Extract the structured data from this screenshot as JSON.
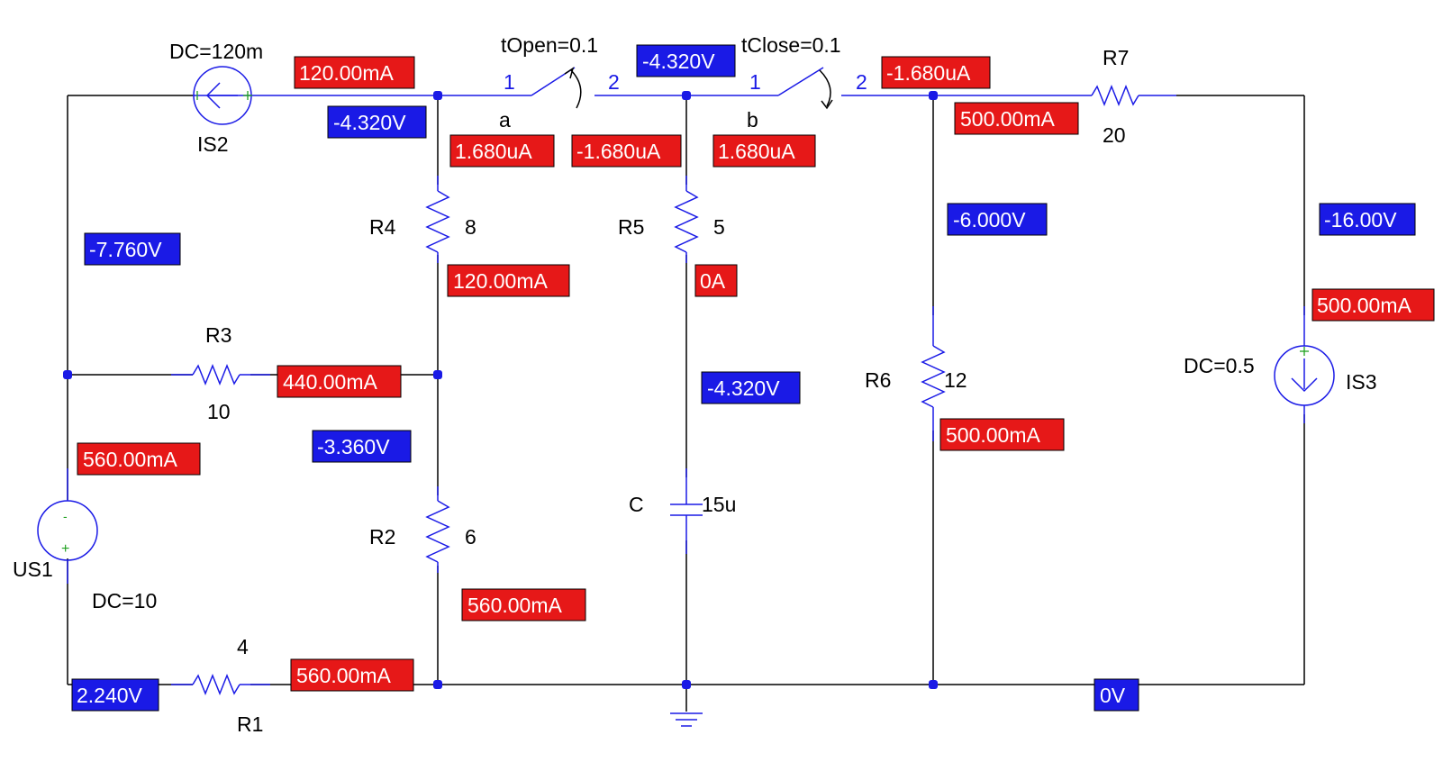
{
  "components": {
    "IS2": {
      "name": "IS2",
      "value": "DC=120m"
    },
    "IS3": {
      "name": "IS3",
      "value": "DC=0.5"
    },
    "US1": {
      "name": "US1",
      "value": "DC=10"
    },
    "R1": {
      "name": "R1",
      "value": "4"
    },
    "R2": {
      "name": "R2",
      "value": "6"
    },
    "R3": {
      "name": "R3",
      "value": "10"
    },
    "R4": {
      "name": "R4",
      "value": "8"
    },
    "R5": {
      "name": "R5",
      "value": "5"
    },
    "R6": {
      "name": "R6",
      "value": "12"
    },
    "R7": {
      "name": "R7",
      "value": "20"
    },
    "C": {
      "name": "C",
      "value": "15u"
    },
    "switch_a": {
      "name": "a",
      "value": "tOpen=0.1",
      "pin1": "1",
      "pin2": "2"
    },
    "switch_b": {
      "name": "b",
      "value": "tClose=0.1",
      "pin1": "1",
      "pin2": "2"
    },
    "source_signs": {
      "plus": "+",
      "minus": "-"
    }
  },
  "voltage_tags": {
    "v1": "-4.320V",
    "v2": "-4.320V",
    "v3": "-7.760V",
    "v4": "-3.360V",
    "v5": "-4.320V",
    "v6": "-6.000V",
    "v7": "-16.00V",
    "v8": "2.240V",
    "v9": "0V"
  },
  "current_tags": {
    "i1": "120.00mA",
    "i2": "1.680uA",
    "i3": "-1.680uA",
    "i4": "1.680uA",
    "i5": "-1.680uA",
    "i6": "500.00mA",
    "i7": "120.00mA",
    "i8": "0A",
    "i9": "440.00mA",
    "i10": "560.00mA",
    "i11": "500.00mA",
    "i12": "500.00mA",
    "i13": "560.00mA",
    "i14": "560.00mA"
  },
  "colors": {
    "voltage_tag": "#1a1ae6",
    "current_tag": "#e61818",
    "wire": "#000000",
    "component": "#1a1ae6",
    "junction": "#1a1ae6",
    "source_sign": "#21a121"
  }
}
